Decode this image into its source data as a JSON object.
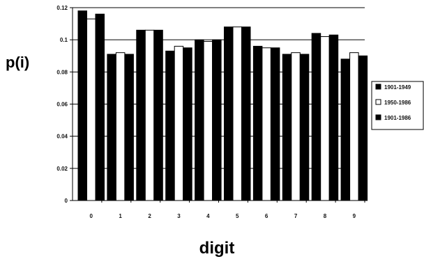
{
  "chart_data": {
    "type": "bar",
    "xlabel": "digit",
    "ylabel": "p(i)",
    "ylim": [
      0,
      0.12
    ],
    "yticks": [
      "0",
      "0.02",
      "0.04",
      "0.06",
      "0.08",
      "0.1",
      "0.12"
    ],
    "categories": [
      "0",
      "1",
      "2",
      "3",
      "4",
      "5",
      "6",
      "7",
      "8",
      "9"
    ],
    "grid": true,
    "legend_position": "right",
    "series": [
      {
        "name": "1901-1949",
        "color": "#000000",
        "values": [
          0.118,
          0.091,
          0.106,
          0.093,
          0.1,
          0.108,
          0.096,
          0.091,
          0.104,
          0.088
        ]
      },
      {
        "name": "1950-1986",
        "color": "#ffffff",
        "values": [
          0.113,
          0.092,
          0.106,
          0.096,
          0.099,
          0.108,
          0.095,
          0.092,
          0.102,
          0.092
        ]
      },
      {
        "name": "1901-1986",
        "color": "#000000",
        "values": [
          0.116,
          0.091,
          0.106,
          0.095,
          0.1,
          0.108,
          0.095,
          0.091,
          0.103,
          0.09
        ]
      }
    ]
  }
}
